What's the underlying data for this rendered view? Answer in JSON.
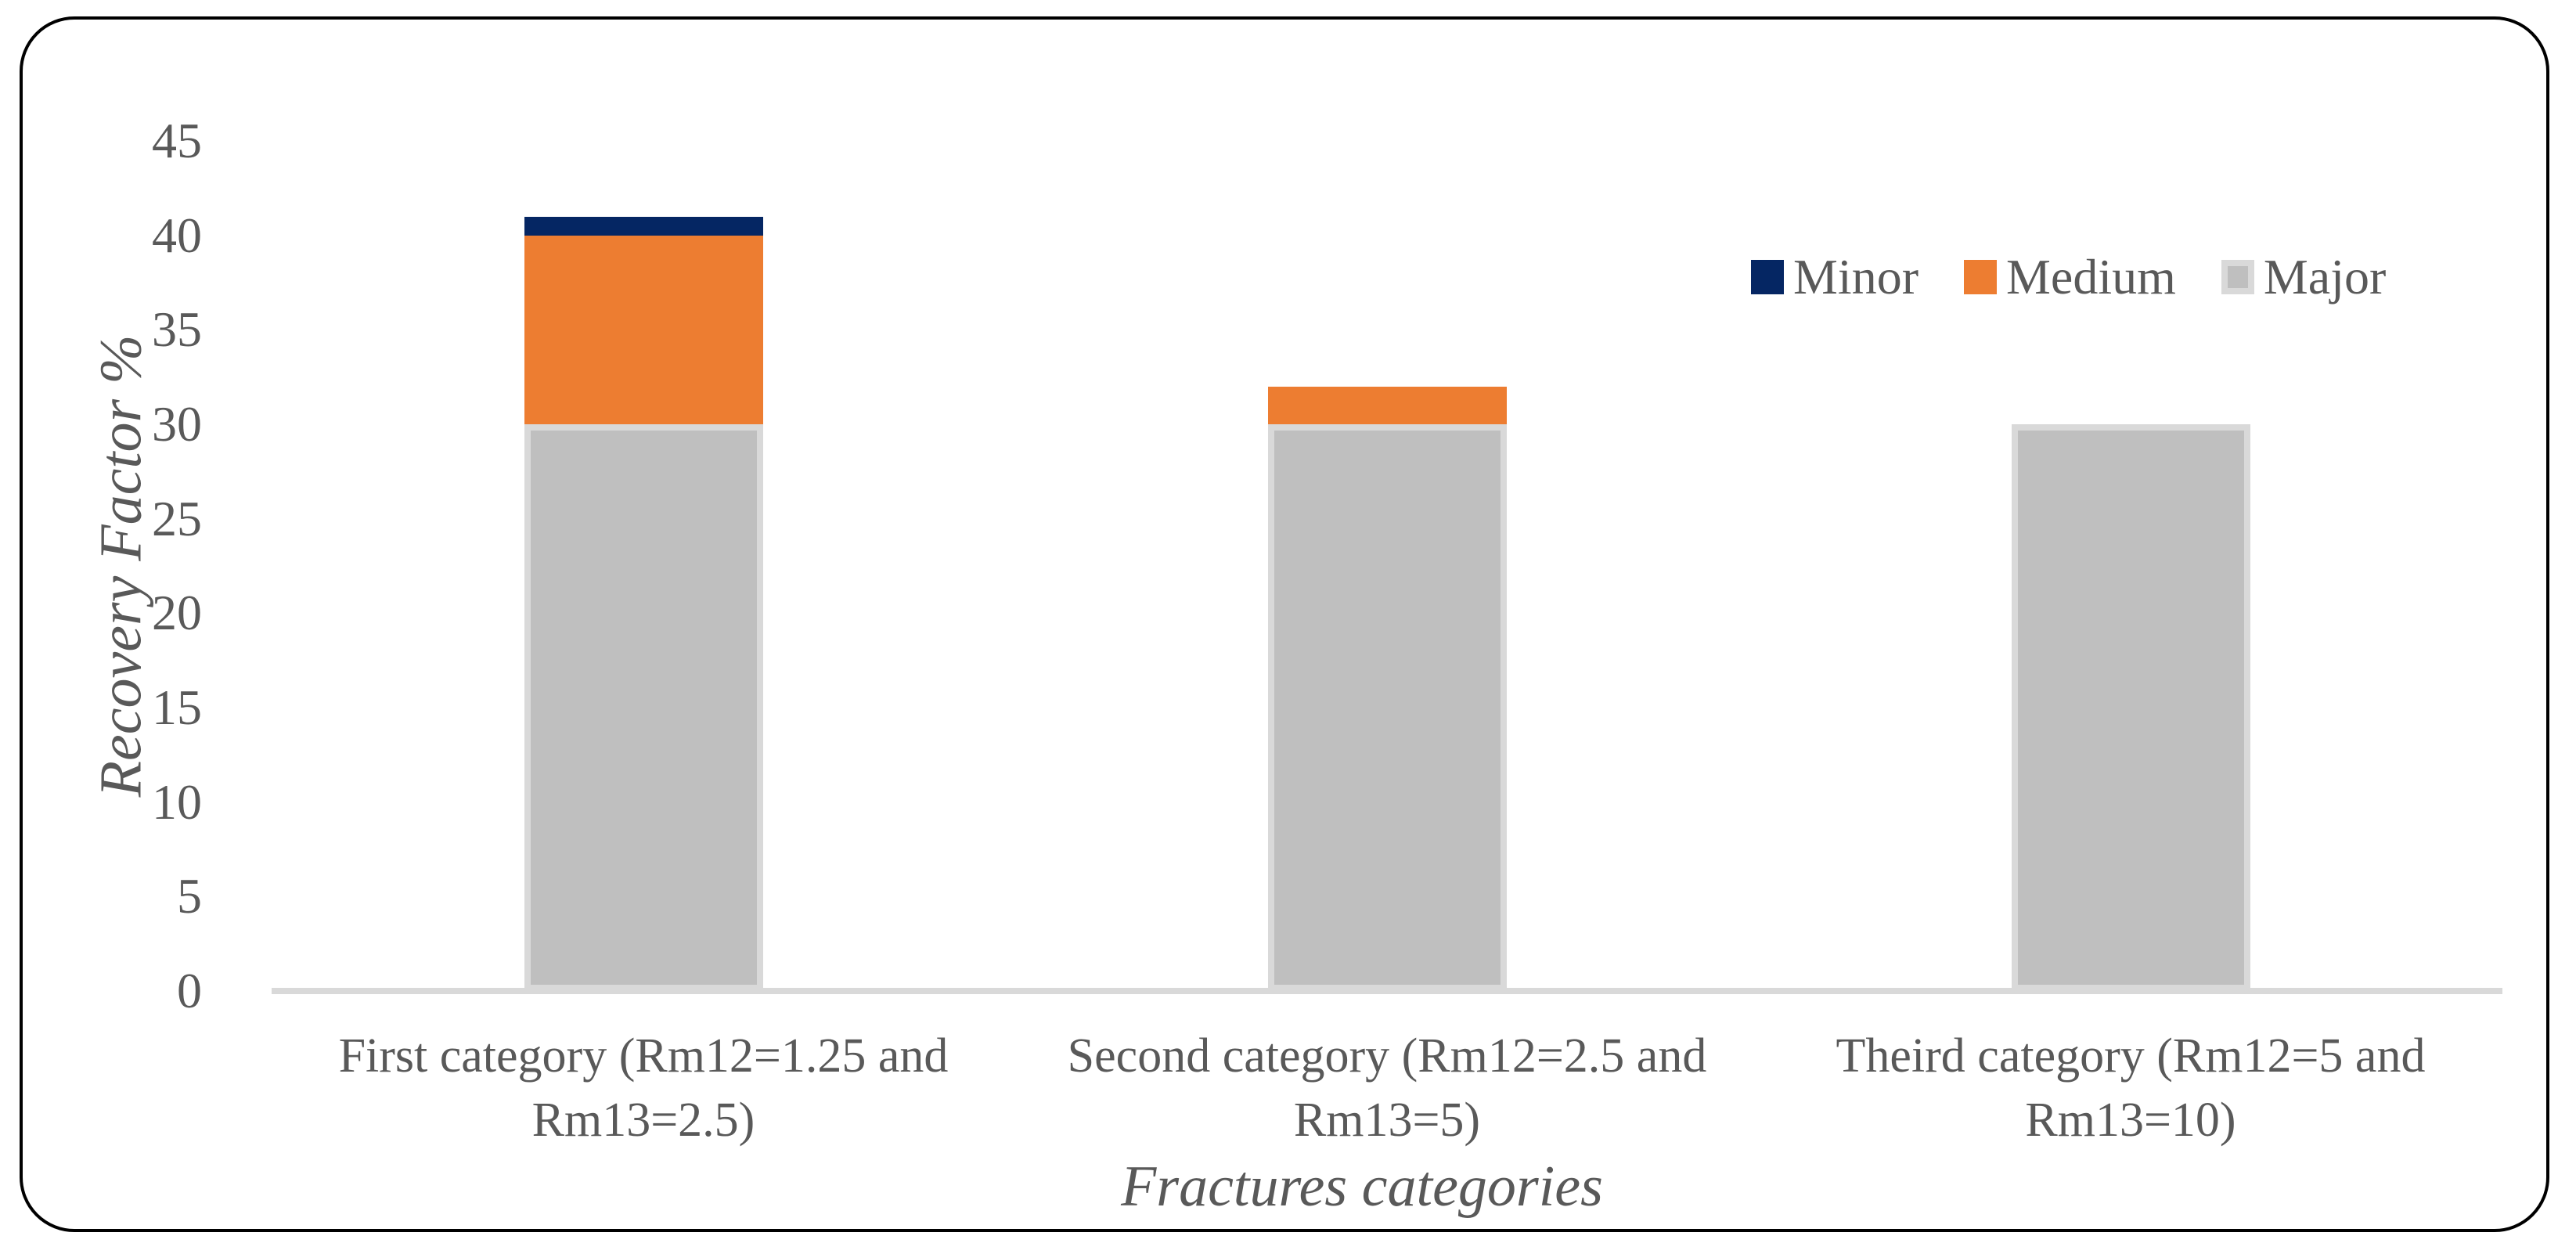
{
  "chart_data": {
    "type": "bar",
    "stacked": true,
    "title": "",
    "xlabel": "Fractures categories",
    "ylabel": "Recovery Factor %",
    "categories": [
      "First category (Rm12=1.25 and Rm13=2.5)",
      "Second category (Rm12=2.5 and Rm13=5)",
      "Theird category (Rm12=5 and Rm13=10)"
    ],
    "series": [
      {
        "name": "Major",
        "color": "#BFBFBF",
        "border_color": "#D9D9D9",
        "values": [
          30,
          30,
          30
        ]
      },
      {
        "name": "Medium",
        "color": "#ED7D31",
        "border_color": "#ED7D31",
        "values": [
          10,
          2,
          0
        ]
      },
      {
        "name": "Minor",
        "color": "#052663",
        "border_color": "#052663",
        "values": [
          1,
          0,
          0
        ]
      }
    ],
    "legend": {
      "position": "top-right",
      "order": [
        "Minor",
        "Medium",
        "Major"
      ]
    },
    "y_axis": {
      "min": 0,
      "max": 45,
      "tick_interval": 5,
      "ticks": [
        45,
        40,
        35,
        30,
        25,
        20,
        15,
        10,
        5,
        0
      ]
    },
    "grid": false,
    "colors": {
      "axis_line": "#D9D9D9",
      "text": "#595959",
      "frame_border": "#000000",
      "background": "#FFFFFF"
    }
  }
}
